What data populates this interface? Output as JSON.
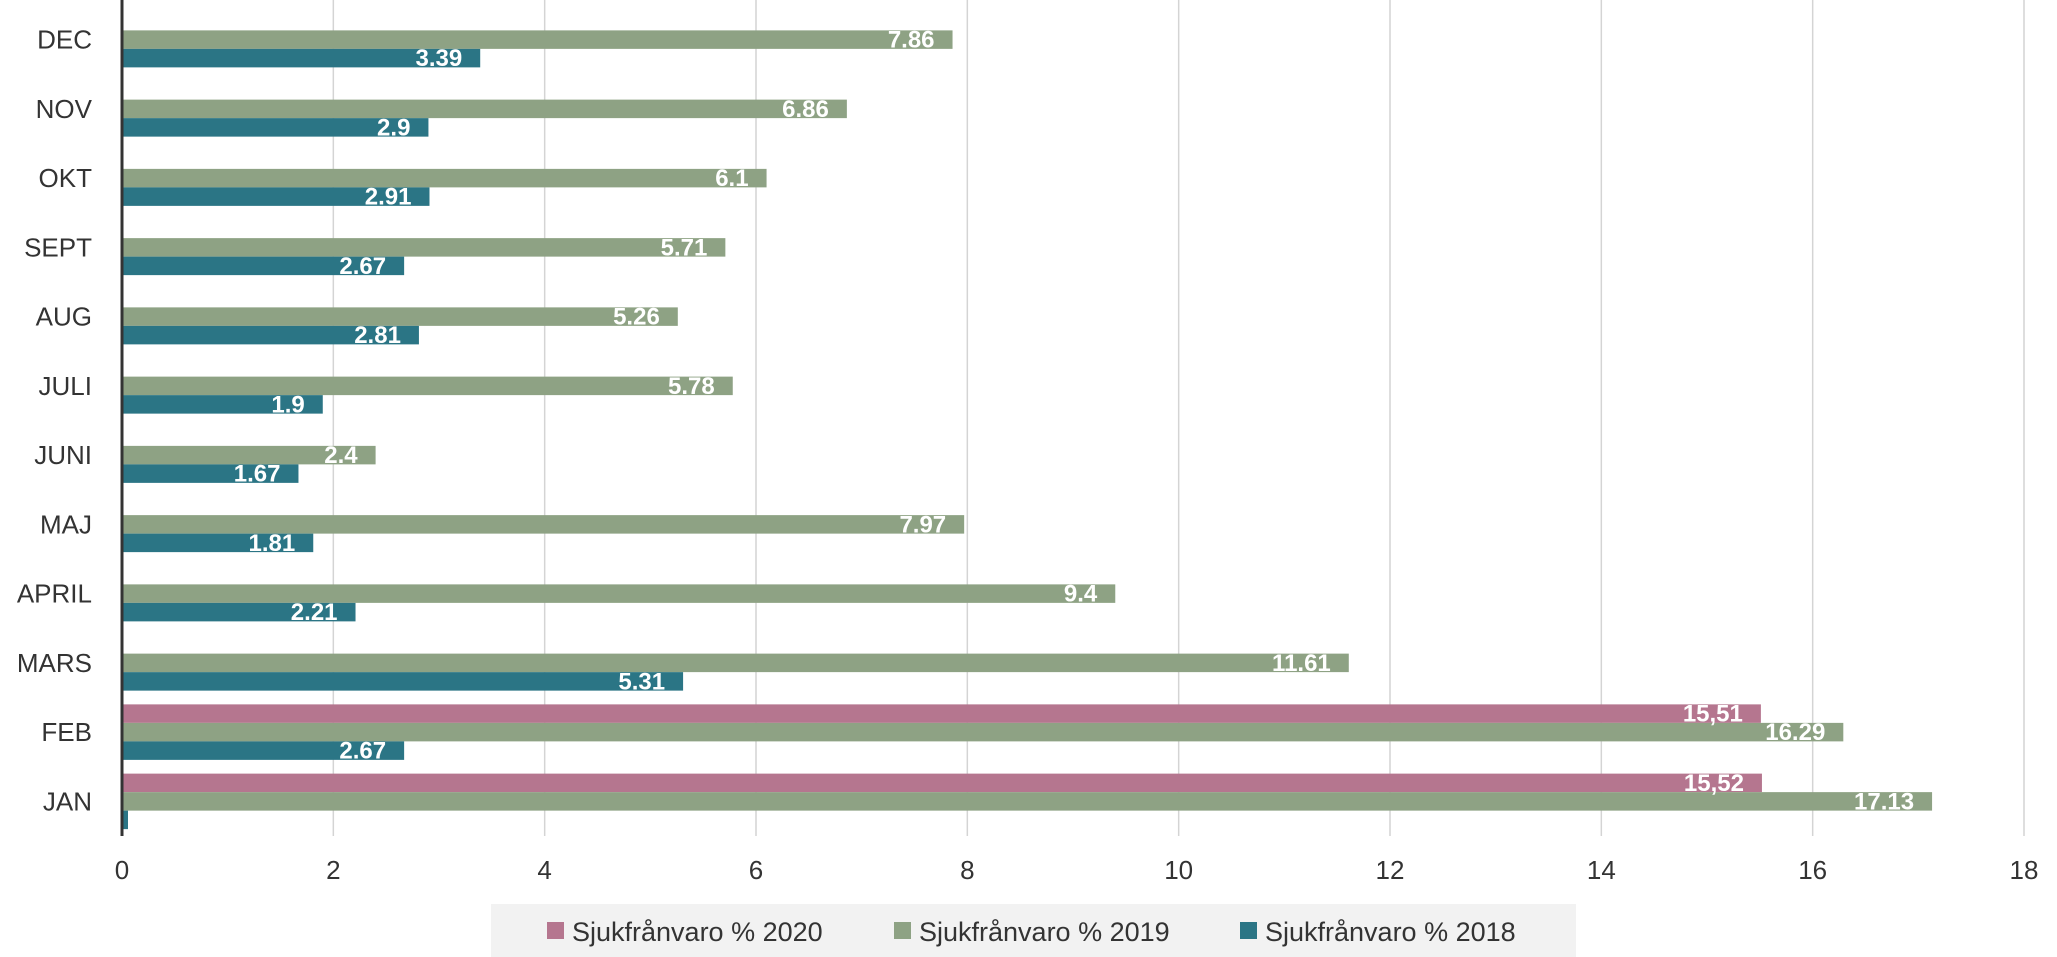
{
  "chart_data": {
    "type": "bar",
    "orientation": "horizontal",
    "categories": [
      "JAN",
      "FEB",
      "MARS",
      "APRIL",
      "MAJ",
      "JUNI",
      "JULI",
      "AUG",
      "SEPT",
      "OKT",
      "NOV",
      "DEC"
    ],
    "series": [
      {
        "name": "Sjukfrånvaro % 2020",
        "color": "#b5768f",
        "values": [
          15.52,
          15.51,
          null,
          null,
          null,
          null,
          null,
          null,
          null,
          null,
          null,
          null
        ],
        "labels": [
          "15,52",
          "15,51",
          "",
          "",
          "",
          "",
          "",
          "",
          "",
          "",
          "",
          ""
        ]
      },
      {
        "name": "Sjukfrånvaro % 2019",
        "color": "#8ea284",
        "values": [
          17.13,
          16.29,
          11.61,
          9.4,
          7.97,
          2.4,
          5.78,
          5.26,
          5.71,
          6.1,
          6.86,
          7.86
        ],
        "labels": [
          "17.13",
          "16.29",
          "11.61",
          "9.4",
          "7.97",
          "2.4",
          "5.78",
          "5.26",
          "5.71",
          "6.1",
          "6.86",
          "7.86"
        ]
      },
      {
        "name": "Sjukfrånvaro % 2018",
        "color": "#2b7585",
        "values": [
          0,
          2.67,
          5.31,
          2.21,
          1.81,
          1.67,
          1.9,
          2.81,
          2.67,
          2.91,
          2.9,
          3.39
        ],
        "labels": [
          "0",
          "2.67",
          "5.31",
          "2.21",
          "1.81",
          "1.67",
          "1.9",
          "2.81",
          "2.67",
          "2.91",
          "2.9",
          "3.39"
        ]
      }
    ],
    "xlim": [
      0,
      18
    ],
    "xticks": [
      "0",
      "2",
      "4",
      "6",
      "8",
      "10",
      "12",
      "14",
      "16",
      "18"
    ],
    "grid": true,
    "legend_position": "bottom"
  }
}
